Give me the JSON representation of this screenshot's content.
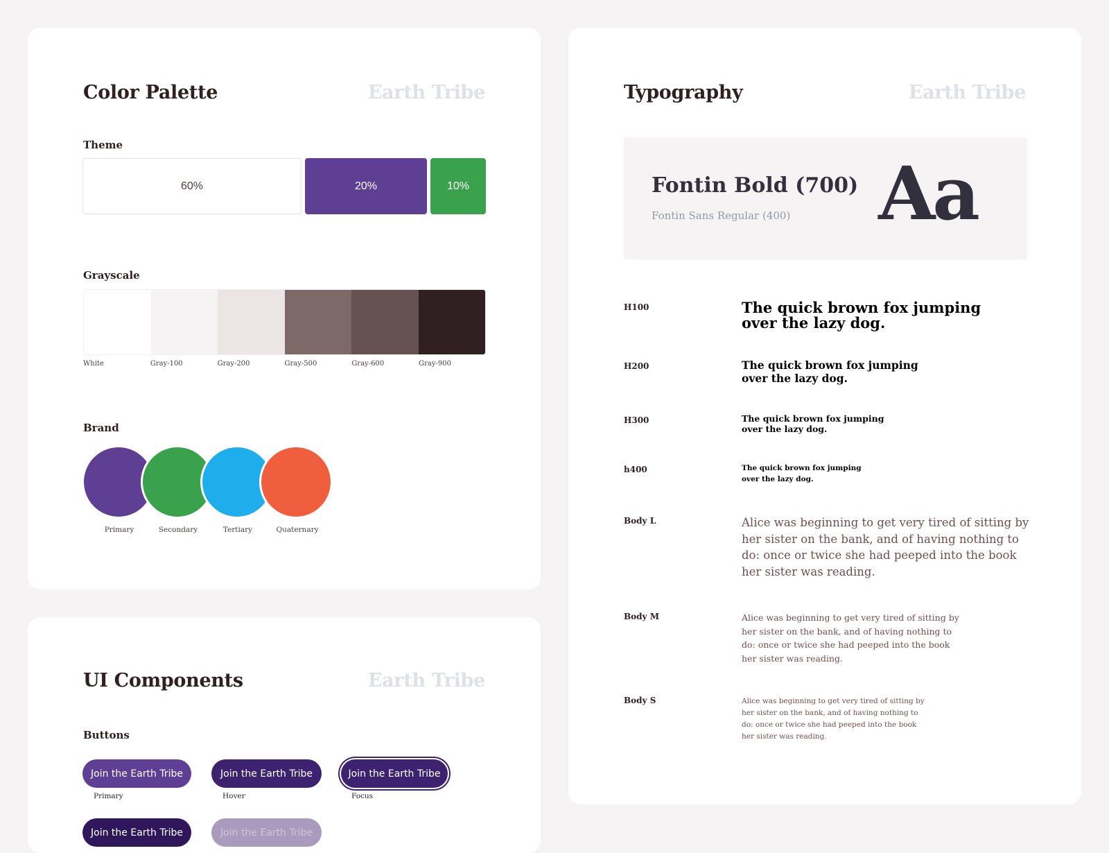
{
  "brand_name": "Earth Tribe",
  "colors": {
    "title": "Color Palette",
    "theme_label": "Theme",
    "theme": [
      {
        "value": "60%",
        "color": "#ffffff"
      },
      {
        "value": "20%",
        "color": "#5e3f93"
      },
      {
        "value": "10%",
        "color": "#3aa24c"
      }
    ],
    "grayscale_label": "Grayscale",
    "grayscale": [
      {
        "name": "White",
        "color": "#ffffff"
      },
      {
        "name": "Gray-100",
        "color": "#f5f3f3"
      },
      {
        "name": "Gray-200",
        "color": "#ebe5e5"
      },
      {
        "name": "Gray-500",
        "color": "#7d6968"
      },
      {
        "name": "Gray-600",
        "color": "#655151"
      },
      {
        "name": "Gray-900",
        "color": "#312021"
      }
    ],
    "brand_label": "Brand",
    "brand": [
      {
        "name": "Primary",
        "color": "#5e3f93"
      },
      {
        "name": "Secondary",
        "color": "#3aa24c"
      },
      {
        "name": "Tertiary",
        "color": "#1eaeeb"
      },
      {
        "name": "Quaternary",
        "color": "#ef5f3e"
      }
    ]
  },
  "ui": {
    "title": "UI Components",
    "buttons_label": "Buttons",
    "button_text": "Join the Earth Tribe",
    "states": {
      "primary": "Primary",
      "hover": "Hover",
      "focus": "Focus"
    }
  },
  "typography": {
    "title": "Typography",
    "hero_bold": "Fontin Bold (700)",
    "hero_regular": "Fontin Sans Regular (400)",
    "hero_glyph": "Aa",
    "heading_sample_line1": "The quick brown fox jumping",
    "heading_sample_line2": "over the lazy dog.",
    "body_sample": "Alice was beginning to get very tired of sitting by her sister on the bank, and of having nothing to do: once or twice she had peeped into the book her sister was reading.",
    "body_lines": [
      "Alice was beginning to get very tired of sitting by",
      "her sister on the bank, and of having nothing to",
      "do: once or twice she had peeped into the book",
      "her sister was reading."
    ],
    "rows": {
      "h100": "H100",
      "h200": "H200",
      "h300": "H300",
      "h400": "h400",
      "body_l": "Body L",
      "body_m": "Body M",
      "body_s": "Body S"
    }
  }
}
